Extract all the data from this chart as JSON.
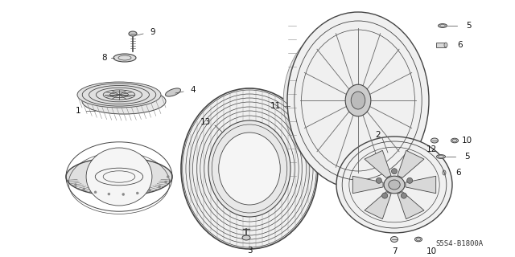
{
  "part_code": "S5S4-B1800A",
  "bg_color": "#ffffff",
  "line_color": "#444444",
  "label_color": "#111111",
  "figsize": [
    6.4,
    3.2
  ],
  "dpi": 100
}
